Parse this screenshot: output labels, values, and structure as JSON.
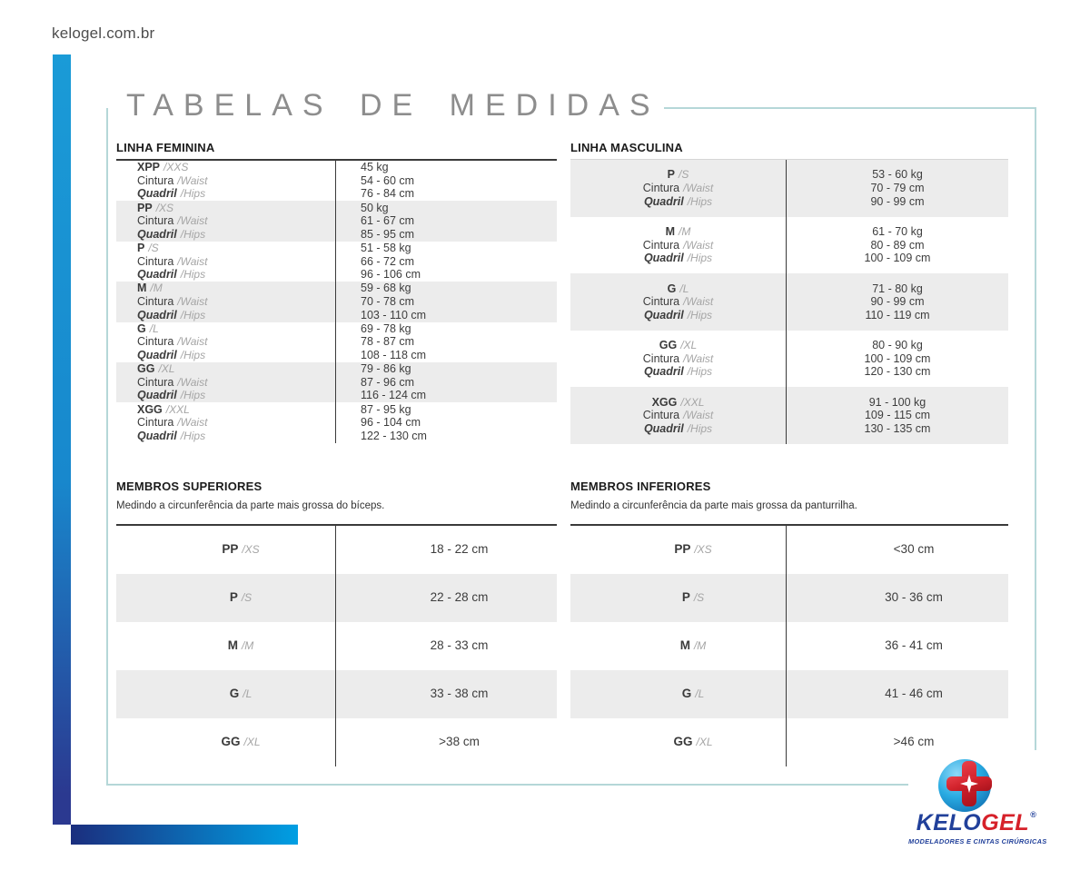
{
  "site_url": "kelogel.com.br",
  "page_title": "TABELAS DE MEDIDAS",
  "labels": {
    "waist_pt": "Cintura",
    "waist_en": "/Waist",
    "hips_pt": "Quadril",
    "hips_en": "/Hips"
  },
  "tables": {
    "feminine": {
      "title": "LINHA FEMININA",
      "rows": [
        {
          "size": "XPP",
          "size_en": "/XXS",
          "weight": "45 kg",
          "waist": "54 - 60 cm",
          "hips": "76 - 84 cm"
        },
        {
          "size": "PP",
          "size_en": "/XS",
          "weight": "50 kg",
          "waist": "61 - 67 cm",
          "hips": "85 - 95 cm"
        },
        {
          "size": "P",
          "size_en": "/S",
          "weight": "51 - 58 kg",
          "waist": "66 - 72 cm",
          "hips": "96 - 106 cm"
        },
        {
          "size": "M",
          "size_en": "/M",
          "weight": "59 - 68 kg",
          "waist": "70 - 78 cm",
          "hips": "103 - 110 cm"
        },
        {
          "size": "G",
          "size_en": "/L",
          "weight": "69 - 78 kg",
          "waist": "78 - 87 cm",
          "hips": "108 - 118 cm"
        },
        {
          "size": "GG",
          "size_en": "/XL",
          "weight": "79 - 86 kg",
          "waist": "87 - 96 cm",
          "hips": "116 - 124 cm"
        },
        {
          "size": "XGG",
          "size_en": "/XXL",
          "weight": "87 - 95 kg",
          "waist": "96 - 104 cm",
          "hips": "122 - 130 cm"
        }
      ]
    },
    "masculine": {
      "title": "LINHA MASCULINA",
      "rows": [
        {
          "size": "P",
          "size_en": "/S",
          "weight": "53 - 60 kg",
          "waist": "70 - 79 cm",
          "hips": "90 - 99 cm"
        },
        {
          "size": "M",
          "size_en": "/M",
          "weight": "61 - 70 kg",
          "waist": "80 - 89 cm",
          "hips": "100 - 109 cm"
        },
        {
          "size": "G",
          "size_en": "/L",
          "weight": "71 - 80 kg",
          "waist": "90 - 99 cm",
          "hips": "110 - 119 cm"
        },
        {
          "size": "GG",
          "size_en": "/XL",
          "weight": "80 - 90 kg",
          "waist": "100 - 109 cm",
          "hips": "120 - 130 cm"
        },
        {
          "size": "XGG",
          "size_en": "/XXL",
          "weight": "91 - 100 kg",
          "waist": "109 - 115 cm",
          "hips": "130 - 135 cm"
        }
      ]
    },
    "upper_limbs": {
      "title": "MEMBROS SUPERIORES",
      "subtitle": "Medindo a circunferência da parte mais grossa do bíceps.",
      "rows": [
        {
          "size": "PP",
          "size_en": "/XS",
          "value": "18 - 22 cm"
        },
        {
          "size": "P",
          "size_en": "/S",
          "value": "22 - 28 cm"
        },
        {
          "size": "M",
          "size_en": "/M",
          "value": "28 - 33 cm"
        },
        {
          "size": "G",
          "size_en": "/L",
          "value": "33 - 38 cm"
        },
        {
          "size": "GG",
          "size_en": "/XL",
          "value": ">38 cm"
        }
      ]
    },
    "lower_limbs": {
      "title": "MEMBROS INFERIORES",
      "subtitle": "Medindo a circunferência da parte mais grossa da panturrilha.",
      "rows": [
        {
          "size": "PP",
          "size_en": "/XS",
          "value": "<30 cm"
        },
        {
          "size": "P",
          "size_en": "/S",
          "value": "30 - 36 cm"
        },
        {
          "size": "M",
          "size_en": "/M",
          "value": "36 - 41 cm"
        },
        {
          "size": "G",
          "size_en": "/L",
          "value": "41 - 46 cm"
        },
        {
          "size": "GG",
          "size_en": "/XL",
          "value": ">46 cm"
        }
      ]
    }
  },
  "logo": {
    "brand_primary": "KELO",
    "brand_secondary": "GEL",
    "registered": "®",
    "tagline": "MODELADORES E CINTAS CIRÚRGICAS"
  },
  "colors": {
    "accent_blue": "#1a9bd7",
    "accent_navy": "#2b3990",
    "frame_border": "#b5d7d8",
    "row_alt_bg": "#ececec",
    "brand_navy": "#21409a",
    "brand_red": "#d6212a"
  }
}
